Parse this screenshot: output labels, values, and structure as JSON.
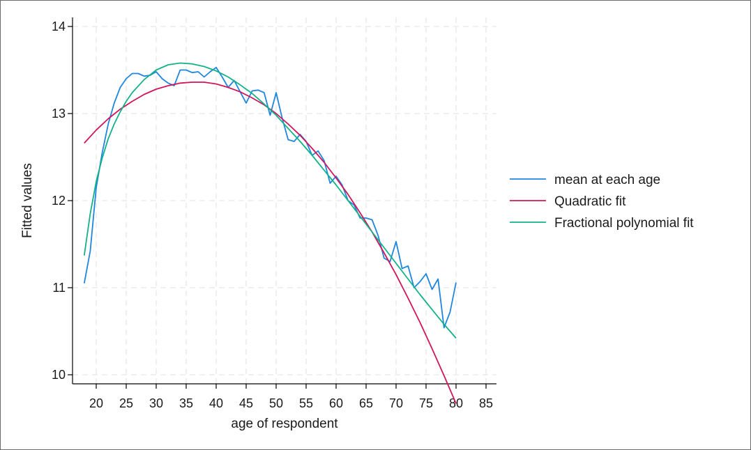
{
  "chart_data": {
    "type": "line",
    "title": "",
    "xlabel": "age of respondent",
    "ylabel": "Fitted values",
    "xlim": [
      16,
      88
    ],
    "ylim": [
      9.9,
      14.1
    ],
    "xticks": [
      20,
      25,
      30,
      35,
      40,
      45,
      50,
      55,
      60,
      65,
      70,
      75,
      80,
      85
    ],
    "yticks": [
      10,
      11,
      12,
      13,
      14
    ],
    "grid": true,
    "legend_position": "right",
    "series": [
      {
        "name": "mean at each age",
        "color": "#1f86e0",
        "x": [
          18,
          19,
          20,
          21,
          22,
          23,
          24,
          25,
          26,
          27,
          28,
          29,
          30,
          31,
          32,
          33,
          34,
          35,
          36,
          37,
          38,
          39,
          40,
          41,
          42,
          43,
          44,
          45,
          46,
          47,
          48,
          49,
          50,
          51,
          52,
          53,
          54,
          55,
          56,
          57,
          58,
          59,
          60,
          61,
          62,
          63,
          64,
          65,
          66,
          67,
          68,
          69,
          70,
          71,
          72,
          73,
          74,
          75,
          76,
          77,
          78,
          79,
          80
        ],
        "y": [
          11.05,
          11.42,
          12.15,
          12.55,
          12.88,
          13.12,
          13.3,
          13.4,
          13.46,
          13.46,
          13.43,
          13.44,
          13.48,
          13.4,
          13.35,
          13.32,
          13.5,
          13.5,
          13.47,
          13.48,
          13.42,
          13.48,
          13.53,
          13.42,
          13.3,
          13.38,
          13.25,
          13.12,
          13.26,
          13.27,
          13.24,
          12.98,
          13.24,
          12.95,
          12.7,
          12.68,
          12.76,
          12.68,
          12.52,
          12.57,
          12.46,
          12.2,
          12.28,
          12.18,
          12.0,
          11.95,
          11.8,
          11.8,
          11.78,
          11.6,
          11.34,
          11.3,
          11.53,
          11.22,
          11.25,
          11.0,
          11.07,
          11.16,
          10.98,
          11.1,
          10.54,
          10.72,
          11.06
        ]
      },
      {
        "name": "Quadratic fit",
        "color": "#d2155a",
        "x": [
          18,
          20,
          22,
          24,
          26,
          28,
          30,
          32,
          34,
          36,
          38,
          40,
          42,
          44,
          46,
          48,
          50,
          52,
          54,
          56,
          58,
          60,
          62,
          64,
          66,
          68,
          70,
          72,
          74,
          76,
          78,
          80
        ],
        "y": [
          12.66,
          12.81,
          12.94,
          13.05,
          13.14,
          13.22,
          13.28,
          13.32,
          13.35,
          13.36,
          13.36,
          13.34,
          13.3,
          13.25,
          13.18,
          13.1,
          13.0,
          12.88,
          12.75,
          12.6,
          12.44,
          12.26,
          12.07,
          11.86,
          11.64,
          11.4,
          11.15,
          10.88,
          10.6,
          10.3,
          9.99,
          9.67
        ]
      },
      {
        "name": "Fractional polynomial fit",
        "color": "#12b288",
        "x": [
          18,
          19,
          20,
          21,
          22,
          23,
          24,
          25,
          26,
          28,
          30,
          32,
          34,
          36,
          38,
          40,
          42,
          44,
          46,
          48,
          50,
          52,
          54,
          56,
          58,
          60,
          62,
          64,
          66,
          68,
          70,
          72,
          74,
          76,
          78,
          80
        ],
        "y": [
          11.37,
          11.85,
          12.22,
          12.49,
          12.71,
          12.88,
          13.02,
          13.14,
          13.24,
          13.39,
          13.5,
          13.56,
          13.58,
          13.57,
          13.54,
          13.49,
          13.42,
          13.33,
          13.23,
          13.11,
          12.98,
          12.83,
          12.68,
          12.52,
          12.35,
          12.18,
          12.0,
          11.82,
          11.64,
          11.46,
          11.28,
          11.1,
          10.92,
          10.75,
          10.58,
          10.42
        ]
      }
    ]
  }
}
